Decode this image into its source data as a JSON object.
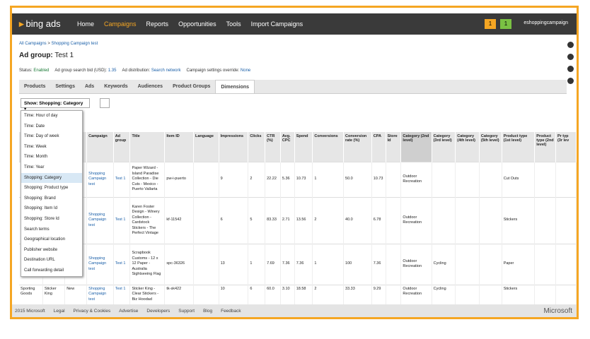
{
  "nav": {
    "logo": "bing ads",
    "items": [
      "Home",
      "Campaigns",
      "Reports",
      "Opportunities",
      "Tools",
      "Import Campaigns"
    ],
    "badges": [
      "1",
      "1"
    ],
    "account": "eshoppingcampaign"
  },
  "breadcrumb": [
    "All Campaigns",
    "Shopping Campaign test"
  ],
  "ad_group": {
    "label": "Ad group:",
    "name": "Test 1"
  },
  "status": [
    [
      "Status:",
      "Enabled"
    ],
    [
      "Ad group search bid (USD):",
      "1.35"
    ],
    [
      "Ad distribution:",
      "Search network"
    ],
    [
      "Campaign settings override:",
      "None"
    ]
  ],
  "tabs": [
    "Products",
    "Settings",
    "Ads",
    "Keywords",
    "Audiences",
    "Product Groups",
    "Dimensions"
  ],
  "show": "Show: Shopping: Category",
  "dropdown": [
    "Time: Hour of day",
    "Time: Date",
    "Time: Day of week",
    "Time: Week",
    "Time: Month",
    "Time: Year",
    "Shopping: Category",
    "Shopping: Product type",
    "Shopping: Brand",
    "Shopping: Item Id",
    "Shopping: Store Id",
    "Search terms",
    "Geographical location",
    "Publisher website",
    "Destination URL",
    "Call forwarding detail"
  ],
  "table": {
    "columns": [
      null,
      null,
      "ion",
      "Campaign",
      "Ad group",
      "Title",
      "Item ID",
      "Language",
      "Impressions",
      "Clicks",
      "CTR (%)",
      "Avg. CPC",
      "Spend",
      "Conversions",
      "Conversion rate (%)",
      "CPA",
      "Store Id",
      "Category (2nd level)",
      "Category (3rd level)",
      "Category (4th level)",
      "Category (5th level)",
      "Product type (1st level)",
      "Product type (2nd level)",
      "Pr typ (3r lev"
    ],
    "rows": [
      [
        null,
        null,
        null,
        "Shopping Campaign test",
        "Test 1",
        "Paper Wizard - Island Paradise Collection - Die Cuts - Mexico - Puerto Vallarta",
        "pw-i-puerto",
        null,
        "9",
        "2",
        "22.22",
        "5.36",
        "10.73",
        "1",
        "50.0",
        "10.73",
        null,
        "Outdoor Recreation",
        null,
        null,
        null,
        "Cut Outs",
        null,
        null
      ],
      [
        null,
        null,
        null,
        "Shopping Campaign test",
        "Test 1",
        "Karen Foster Design - Winery Collection - Cardstock Stickers - The Perfect Vintage",
        "kf-11542",
        null,
        "6",
        "5",
        "83.33",
        "2.71",
        "13.56",
        "2",
        "40.0",
        "6.78",
        null,
        "Outdoor Recreation",
        null,
        null,
        null,
        "Stickers",
        null,
        null
      ],
      [
        null,
        null,
        null,
        "Shopping Campaign test",
        "Test 1",
        "Scrapbook Customs - 12 x 12 Paper - Australia Sightseeing Flag",
        "spc-36326",
        null,
        "13",
        "1",
        "7.69",
        "7.36",
        "7.36",
        "1",
        "100",
        "7.36",
        null,
        "Outdoor Recreation",
        "Cycling",
        null,
        null,
        "Paper",
        null,
        null
      ],
      [
        "Sporting Goods",
        "Sticker King",
        "New",
        "Shopping Campaign test",
        "Test 1",
        "Sticker King - Clear Stickers - Biz Hoodad",
        "tk-sk422",
        null,
        "10",
        "6",
        "60.0",
        "3.10",
        "18.58",
        "2",
        "33.33",
        "9.29",
        null,
        "Outdoor Recreation",
        "Cycling",
        null,
        null,
        "Stickers",
        null,
        null
      ]
    ]
  },
  "footer": {
    "links": [
      "2015 Microsoft",
      "Legal",
      "Privacy & Cookies",
      "Advertise",
      "Developers",
      "Support",
      "Blog",
      "Feedback"
    ],
    "brand": "Microsoft"
  }
}
